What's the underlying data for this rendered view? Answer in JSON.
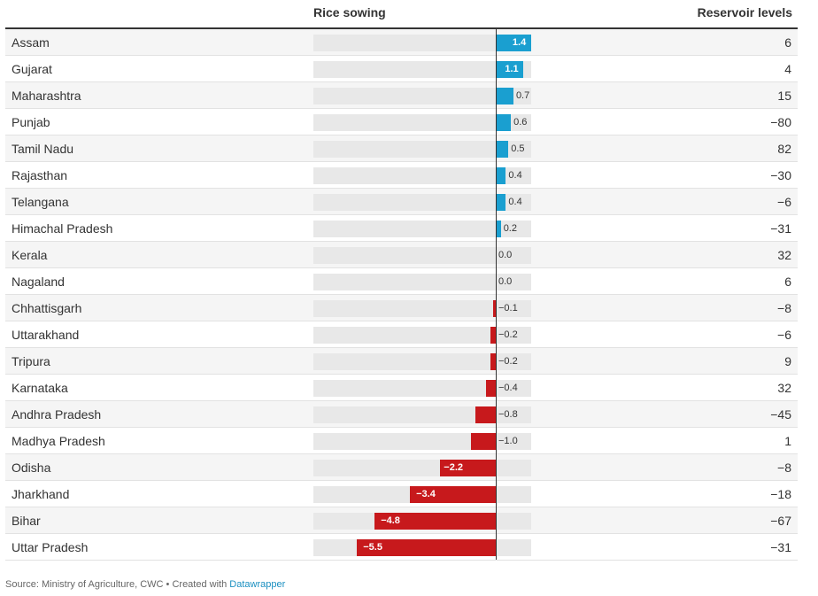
{
  "chart_data": {
    "type": "table",
    "columns": [
      "",
      "Rice sowing",
      "Reservoir levels"
    ],
    "xlim": [
      -10,
      2
    ],
    "colors": {
      "positive": "#1a9fd0",
      "negative": "#c7191c",
      "track": "#e8e8e8"
    },
    "rows": [
      {
        "state": "Assam",
        "rice": 1.4,
        "rice_label": "1.4",
        "reservoir": "6"
      },
      {
        "state": "Gujarat",
        "rice": 1.1,
        "rice_label": "1.1",
        "reservoir": "4"
      },
      {
        "state": "Maharashtra",
        "rice": 0.7,
        "rice_label": "0.7",
        "reservoir": "15"
      },
      {
        "state": "Punjab",
        "rice": 0.6,
        "rice_label": "0.6",
        "reservoir": "−80"
      },
      {
        "state": "Tamil Nadu",
        "rice": 0.5,
        "rice_label": "0.5",
        "reservoir": "82"
      },
      {
        "state": "Rajasthan",
        "rice": 0.4,
        "rice_label": "0.4",
        "reservoir": "−30"
      },
      {
        "state": "Telangana",
        "rice": 0.4,
        "rice_label": "0.4",
        "reservoir": "−6"
      },
      {
        "state": "Himachal Pradesh",
        "rice": 0.2,
        "rice_label": "0.2",
        "reservoir": "−31"
      },
      {
        "state": "Kerala",
        "rice": 0.0,
        "rice_label": "0.0",
        "reservoir": "32"
      },
      {
        "state": "Nagaland",
        "rice": 0.0,
        "rice_label": "0.0",
        "reservoir": "6"
      },
      {
        "state": "Chhattisgarh",
        "rice": -0.1,
        "rice_label": "−0.1",
        "reservoir": "−8"
      },
      {
        "state": "Uttarakhand",
        "rice": -0.2,
        "rice_label": "−0.2",
        "reservoir": "−6"
      },
      {
        "state": "Tripura",
        "rice": -0.2,
        "rice_label": "−0.2",
        "reservoir": "9"
      },
      {
        "state": "Karnataka",
        "rice": -0.4,
        "rice_label": "−0.4",
        "reservoir": "32"
      },
      {
        "state": "Andhra Pradesh",
        "rice": -0.8,
        "rice_label": "−0.8",
        "reservoir": "−45"
      },
      {
        "state": "Madhya Pradesh",
        "rice": -1.0,
        "rice_label": "−1.0",
        "reservoir": "1"
      },
      {
        "state": "Odisha",
        "rice": -2.2,
        "rice_label": "−2.2",
        "reservoir": "−8"
      },
      {
        "state": "Jharkhand",
        "rice": -3.4,
        "rice_label": "−3.4",
        "reservoir": "−18"
      },
      {
        "state": "Bihar",
        "rice": -4.8,
        "rice_label": "−4.8",
        "reservoir": "−67"
      },
      {
        "state": "Uttar Pradesh",
        "rice": -5.5,
        "rice_label": "−5.5",
        "reservoir": "−31"
      }
    ]
  },
  "footer": {
    "source": "Source: Ministry of Agriculture, CWC • Created with ",
    "tool": "Datawrapper"
  }
}
